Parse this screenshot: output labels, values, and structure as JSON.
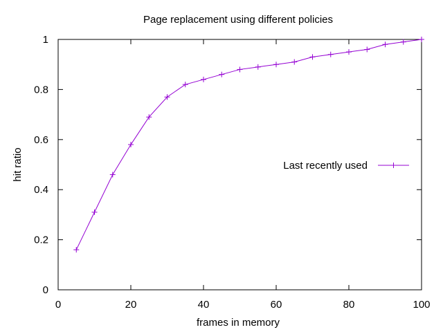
{
  "chart_data": {
    "type": "line",
    "title": "Page replacement using different policies",
    "xlabel": "frames in memory",
    "ylabel": "hit ratio",
    "xlim": [
      0,
      100
    ],
    "ylim": [
      0,
      1
    ],
    "xticks": [
      0,
      20,
      40,
      60,
      80,
      100
    ],
    "yticks": [
      0,
      0.2,
      0.4,
      0.6,
      0.8,
      1
    ],
    "xtick_labels": [
      "0",
      "20",
      "40",
      "60",
      "80",
      "100"
    ],
    "ytick_labels": [
      "0",
      "0.2",
      "0.4",
      "0.6",
      "0.8",
      "1"
    ],
    "grid": false,
    "legend": "right-center",
    "series": [
      {
        "name": "Last recently used",
        "color": "#9400d3",
        "marker": "plus",
        "x": [
          5,
          10,
          15,
          20,
          25,
          30,
          35,
          40,
          45,
          50,
          55,
          60,
          65,
          70,
          75,
          80,
          85,
          90,
          95,
          100
        ],
        "y": [
          0.16,
          0.31,
          0.46,
          0.58,
          0.69,
          0.77,
          0.82,
          0.84,
          0.86,
          0.88,
          0.89,
          0.9,
          0.91,
          0.93,
          0.94,
          0.95,
          0.96,
          0.98,
          0.99,
          1.0
        ]
      }
    ]
  }
}
